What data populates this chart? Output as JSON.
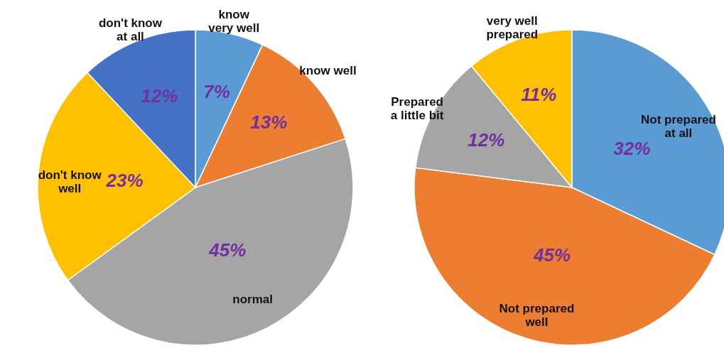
{
  "chart_data": [
    {
      "type": "pie",
      "categories": [
        "know\nvery well",
        "know well",
        "normal",
        "don't know\nwell",
        "don't know\nat all"
      ],
      "values": [
        7,
        13,
        45,
        23,
        12
      ],
      "value_labels": [
        "7%",
        "13%",
        "45%",
        "23%",
        "12%"
      ],
      "colors": [
        "#5b9bd5",
        "#ed7d31",
        "#a5a5a5",
        "#ffc000",
        "#4472c4"
      ]
    },
    {
      "type": "pie",
      "categories": [
        "Not prepared\nat all",
        "Not prepared\nwell",
        "Prepared\na little bit",
        "very well\nprepared"
      ],
      "values": [
        32,
        45,
        12,
        11
      ],
      "value_labels": [
        "32%",
        "45%",
        "12%",
        "11%"
      ],
      "colors": [
        "#5b9bd5",
        "#ed7d31",
        "#a5a5a5",
        "#ffc000"
      ]
    }
  ]
}
